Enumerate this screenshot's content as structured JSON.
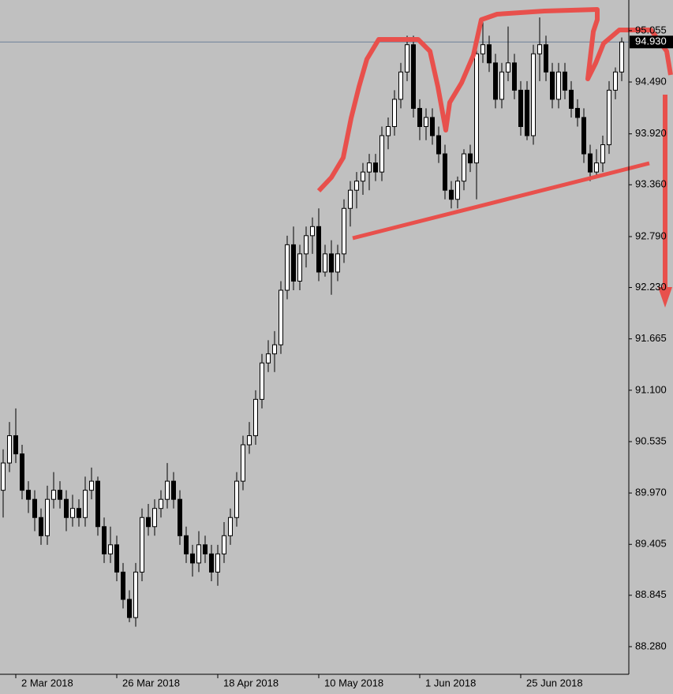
{
  "chart_data": {
    "type": "candlestick",
    "x": [
      null,
      null,
      "2 Mar 2018",
      null,
      null,
      null,
      null,
      null,
      null,
      null,
      null,
      null,
      null,
      null,
      null,
      null,
      null,
      null,
      "26 Mar 2018",
      null,
      null,
      null,
      null,
      null,
      null,
      null,
      null,
      null,
      null,
      null,
      null,
      null,
      null,
      null,
      "18 Apr 2018",
      null,
      null,
      null,
      null,
      null,
      null,
      null,
      null,
      null,
      null,
      null,
      null,
      null,
      null,
      null,
      "10 May 2018",
      null,
      null,
      null,
      null,
      null,
      null,
      null,
      null,
      null,
      null,
      null,
      null,
      null,
      null,
      null,
      "1 Jun 2018",
      null,
      null,
      null,
      null,
      null,
      null,
      null,
      null,
      null,
      null,
      null,
      null,
      null,
      null,
      null,
      "25 Jun 2018",
      null,
      null,
      null,
      null,
      null,
      null,
      null,
      null,
      null,
      null,
      null,
      null,
      null,
      null,
      null,
      null
    ],
    "ohlc": [
      [
        90.0,
        90.45,
        89.7,
        90.3
      ],
      [
        90.3,
        90.75,
        90.2,
        90.6
      ],
      [
        90.6,
        90.9,
        90.3,
        90.4
      ],
      [
        90.4,
        90.5,
        89.9,
        90.0
      ],
      [
        90.0,
        90.1,
        89.75,
        89.9
      ],
      [
        89.9,
        90.0,
        89.55,
        89.7
      ],
      [
        89.7,
        89.8,
        89.4,
        89.5
      ],
      [
        89.5,
        90.05,
        89.4,
        89.9
      ],
      [
        89.9,
        90.2,
        89.8,
        90.0
      ],
      [
        90.0,
        90.1,
        89.8,
        89.9
      ],
      [
        89.9,
        90.0,
        89.55,
        89.7
      ],
      [
        89.7,
        89.95,
        89.6,
        89.8
      ],
      [
        89.8,
        89.9,
        89.6,
        89.7
      ],
      [
        89.7,
        90.15,
        89.6,
        90.0
      ],
      [
        90.0,
        90.25,
        89.9,
        90.1
      ],
      [
        90.1,
        90.15,
        89.5,
        89.6
      ],
      [
        89.6,
        89.7,
        89.2,
        89.3
      ],
      [
        89.3,
        89.6,
        89.2,
        89.4
      ],
      [
        89.4,
        89.5,
        89.0,
        89.1
      ],
      [
        89.1,
        89.2,
        88.7,
        88.8
      ],
      [
        88.8,
        88.9,
        88.55,
        88.6
      ],
      [
        88.6,
        89.2,
        88.5,
        89.1
      ],
      [
        89.1,
        89.8,
        89.0,
        89.7
      ],
      [
        89.7,
        89.85,
        89.5,
        89.6
      ],
      [
        89.6,
        89.9,
        89.5,
        89.8
      ],
      [
        89.8,
        90.0,
        89.7,
        89.9
      ],
      [
        89.9,
        90.3,
        89.8,
        90.1
      ],
      [
        90.1,
        90.2,
        89.8,
        89.9
      ],
      [
        89.9,
        90.0,
        89.4,
        89.5
      ],
      [
        89.5,
        89.6,
        89.2,
        89.3
      ],
      [
        89.3,
        89.4,
        89.05,
        89.2
      ],
      [
        89.2,
        89.55,
        89.1,
        89.4
      ],
      [
        89.4,
        89.5,
        89.2,
        89.3
      ],
      [
        89.3,
        89.4,
        89.0,
        89.1
      ],
      [
        89.1,
        89.4,
        88.95,
        89.3
      ],
      [
        89.3,
        89.65,
        89.2,
        89.5
      ],
      [
        89.5,
        89.8,
        89.4,
        89.7
      ],
      [
        89.7,
        90.2,
        89.6,
        90.1
      ],
      [
        90.1,
        90.6,
        90.0,
        90.5
      ],
      [
        90.5,
        90.75,
        90.4,
        90.6
      ],
      [
        90.6,
        91.1,
        90.5,
        91.0
      ],
      [
        91.0,
        91.5,
        90.9,
        91.4
      ],
      [
        91.4,
        91.65,
        91.3,
        91.5
      ],
      [
        91.5,
        91.75,
        91.3,
        91.6
      ],
      [
        91.6,
        92.3,
        91.5,
        92.2
      ],
      [
        92.2,
        92.8,
        92.1,
        92.7
      ],
      [
        92.7,
        92.9,
        92.2,
        92.3
      ],
      [
        92.3,
        92.7,
        92.2,
        92.6
      ],
      [
        92.6,
        92.9,
        92.45,
        92.8
      ],
      [
        92.8,
        93.0,
        92.6,
        92.9
      ],
      [
        92.9,
        93.1,
        92.3,
        92.4
      ],
      [
        92.4,
        92.7,
        92.35,
        92.6
      ],
      [
        92.6,
        92.75,
        92.15,
        92.4
      ],
      [
        92.4,
        92.7,
        92.3,
        92.6
      ],
      [
        92.6,
        93.2,
        92.5,
        93.1
      ],
      [
        93.1,
        93.4,
        92.9,
        93.3
      ],
      [
        93.3,
        93.5,
        93.1,
        93.4
      ],
      [
        93.4,
        93.6,
        93.25,
        93.5
      ],
      [
        93.5,
        93.7,
        93.3,
        93.6
      ],
      [
        93.6,
        93.7,
        93.4,
        93.5
      ],
      [
        93.5,
        94.0,
        93.4,
        93.9
      ],
      [
        93.9,
        94.1,
        93.75,
        94.0
      ],
      [
        94.0,
        94.4,
        93.9,
        94.3
      ],
      [
        94.3,
        94.7,
        94.2,
        94.6
      ],
      [
        94.6,
        95.0,
        94.5,
        94.9
      ],
      [
        94.9,
        95.0,
        94.1,
        94.2
      ],
      [
        94.2,
        94.3,
        93.85,
        94.0
      ],
      [
        94.0,
        94.2,
        93.85,
        94.1
      ],
      [
        94.1,
        94.2,
        93.8,
        93.9
      ],
      [
        93.9,
        94.0,
        93.6,
        93.7
      ],
      [
        93.7,
        93.8,
        93.2,
        93.3
      ],
      [
        93.3,
        93.4,
        93.1,
        93.2
      ],
      [
        93.2,
        93.45,
        93.1,
        93.4
      ],
      [
        93.4,
        93.75,
        93.3,
        93.7
      ],
      [
        93.7,
        93.8,
        93.5,
        93.6
      ],
      [
        93.6,
        94.9,
        93.2,
        94.8
      ],
      [
        94.8,
        95.15,
        94.7,
        94.9
      ],
      [
        94.9,
        95.0,
        94.6,
        94.7
      ],
      [
        94.7,
        94.8,
        94.2,
        94.3
      ],
      [
        94.3,
        94.7,
        94.2,
        94.6
      ],
      [
        94.6,
        95.1,
        94.5,
        94.7
      ],
      [
        94.7,
        94.8,
        94.3,
        94.4
      ],
      [
        94.4,
        94.5,
        93.9,
        94.0
      ],
      [
        94.4,
        94.5,
        93.85,
        93.9
      ],
      [
        93.9,
        94.9,
        93.8,
        94.8
      ],
      [
        94.8,
        95.2,
        94.5,
        94.9
      ],
      [
        94.9,
        95.0,
        94.5,
        94.6
      ],
      [
        94.6,
        94.7,
        94.2,
        94.3
      ],
      [
        94.3,
        94.7,
        94.2,
        94.6
      ],
      [
        94.6,
        94.7,
        94.3,
        94.4
      ],
      [
        94.4,
        94.5,
        94.1,
        94.2
      ],
      [
        94.2,
        94.3,
        94.0,
        94.1
      ],
      [
        94.1,
        94.2,
        93.6,
        93.7
      ],
      [
        93.7,
        93.8,
        93.4,
        93.5
      ],
      [
        93.5,
        93.75,
        93.45,
        93.6
      ],
      [
        93.6,
        93.9,
        93.5,
        93.8
      ],
      [
        93.8,
        94.5,
        93.7,
        94.4
      ],
      [
        94.4,
        94.65,
        94.3,
        94.6
      ],
      [
        94.6,
        94.98,
        94.5,
        94.93
      ]
    ],
    "ylim": [
      87.976,
      95.392
    ],
    "yticks": [
      {
        "value": 88.28,
        "label": "88.280"
      },
      88.845,
      89.405,
      {
        "value": 89.97,
        "label": "89.970"
      },
      90.535,
      {
        "value": 91.1,
        "label": "91.100"
      },
      91.665,
      {
        "value": 92.23,
        "label": "92.230"
      },
      {
        "value": 92.79,
        "label": "92.790"
      },
      {
        "value": 93.36,
        "label": "93.360"
      },
      {
        "value": 93.92,
        "label": "93.920"
      },
      {
        "value": 94.49,
        "label": "94.490"
      },
      95.055
    ],
    "last_price": {
      "value": 94.93,
      "label": "94.930"
    },
    "up_color": "#ffffff",
    "down_color": "#000000"
  }
}
